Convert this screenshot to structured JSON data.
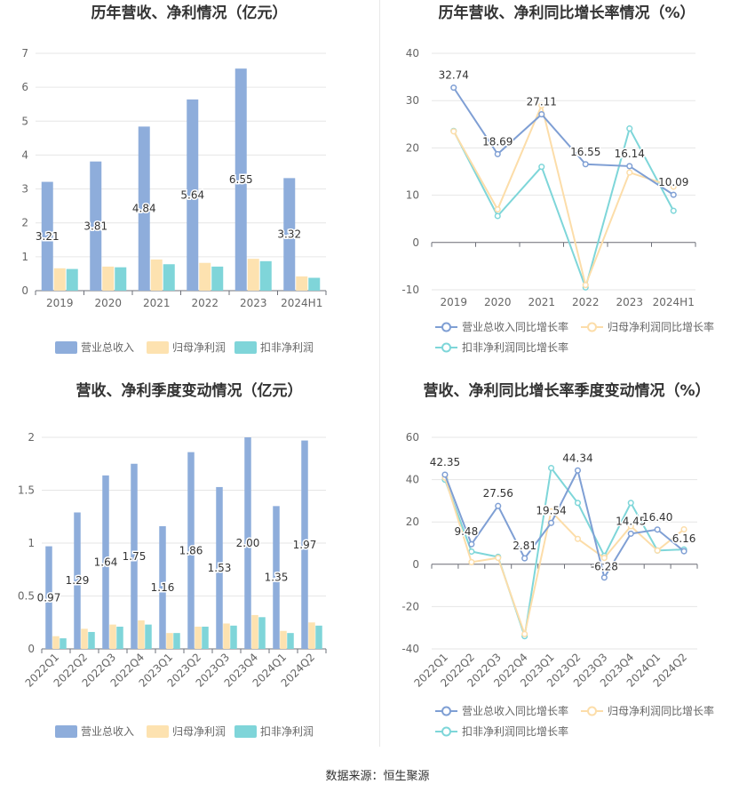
{
  "source": "数据来源：恒生聚源",
  "colors": {
    "revenue": "#8EADDB",
    "net_profit": "#FDE2B0",
    "deducted_profit": "#7FD5D9",
    "revenue_line": "#7F9FD4",
    "net_line": "#FCDDA9",
    "deducted_line": "#7ED6D9",
    "grid": "#E6E6E6",
    "axis_text": "#666666",
    "label_text": "#333333"
  },
  "chart_data": [
    {
      "id": "annual_amount",
      "type": "bar",
      "title": "历年营收、净利情况（亿元）",
      "categories": [
        "2019",
        "2020",
        "2021",
        "2022",
        "2023",
        "2024H1"
      ],
      "ylim": [
        0,
        7
      ],
      "yticks": [
        0,
        1,
        2,
        3,
        4,
        5,
        6,
        7
      ],
      "grid": true,
      "legend_position": "bottom",
      "series": [
        {
          "name": "营业总收入",
          "values": [
            3.21,
            3.81,
            4.84,
            5.64,
            6.55,
            3.32
          ],
          "labels": [
            "3.21",
            "3.81",
            "4.84",
            "5.64",
            "6.55",
            "3.32"
          ]
        },
        {
          "name": "归母净利润",
          "values": [
            0.66,
            0.71,
            0.92,
            0.82,
            0.94,
            0.42
          ]
        },
        {
          "name": "扣非净利润",
          "values": [
            0.64,
            0.69,
            0.78,
            0.71,
            0.87,
            0.38
          ]
        }
      ]
    },
    {
      "id": "annual_growth",
      "type": "line",
      "title": "历年营收、净利同比增长率情况（%）",
      "categories": [
        "2019",
        "2020",
        "2021",
        "2022",
        "2023",
        "2024H1"
      ],
      "ylim": [
        -10,
        40
      ],
      "yticks": [
        -10,
        0,
        10,
        20,
        30,
        40
      ],
      "grid": true,
      "legend_position": "bottom",
      "series": [
        {
          "name": "营业总收入同比增长率",
          "values": [
            32.74,
            18.69,
            27.11,
            16.55,
            16.14,
            10.09
          ],
          "labels": [
            "32.74",
            "18.69",
            "27.11",
            "16.55",
            "16.14",
            "10.09"
          ]
        },
        {
          "name": "归母净利润同比增长率",
          "values": [
            23.5,
            7.0,
            29.0,
            -9.0,
            14.8,
            11.8
          ]
        },
        {
          "name": "扣非净利润同比增长率",
          "values": [
            23.6,
            5.6,
            16.0,
            -9.5,
            24.1,
            6.7
          ]
        }
      ]
    },
    {
      "id": "quarterly_amount",
      "type": "bar",
      "title": "营收、净利季度变动情况（亿元）",
      "categories": [
        "2022Q1",
        "2022Q2",
        "2022Q3",
        "2022Q4",
        "2023Q1",
        "2023Q2",
        "2023Q3",
        "2023Q4",
        "2024Q1",
        "2024Q2"
      ],
      "ylim": [
        0,
        2
      ],
      "yticks": [
        0,
        0.5,
        1,
        1.5,
        2
      ],
      "ytick_labels": [
        "0",
        "0.5",
        "1",
        "1.5",
        "2"
      ],
      "grid": true,
      "legend_position": "bottom",
      "series": [
        {
          "name": "营业总收入",
          "values": [
            0.97,
            1.29,
            1.64,
            1.75,
            1.16,
            1.86,
            1.53,
            2.0,
            1.35,
            1.97
          ],
          "labels": [
            "0.97",
            "1.29",
            "1.64",
            "1.75",
            "1.16",
            "1.86",
            "1.53",
            "2.00",
            "1.35",
            "1.97"
          ]
        },
        {
          "name": "归母净利润",
          "values": [
            0.12,
            0.19,
            0.23,
            0.27,
            0.15,
            0.21,
            0.24,
            0.32,
            0.17,
            0.25
          ]
        },
        {
          "name": "扣非净利润",
          "values": [
            0.1,
            0.16,
            0.21,
            0.23,
            0.15,
            0.21,
            0.22,
            0.3,
            0.15,
            0.22
          ]
        }
      ]
    },
    {
      "id": "quarterly_growth",
      "type": "line",
      "title": "营收、净利同比增长率季度变动情况（%）",
      "categories": [
        "2022Q1",
        "2022Q2",
        "2022Q3",
        "2022Q4",
        "2023Q1",
        "2023Q2",
        "2023Q3",
        "2023Q4",
        "2024Q1",
        "2024Q2"
      ],
      "ylim": [
        -40,
        60
      ],
      "yticks": [
        -40,
        -20,
        0,
        20,
        40,
        60
      ],
      "grid": true,
      "legend_position": "bottom",
      "series": [
        {
          "name": "营业总收入同比增长率",
          "values": [
            42.35,
            9.48,
            27.56,
            2.81,
            19.54,
            44.34,
            -6.28,
            14.45,
            16.4,
            6.16
          ],
          "labels": [
            "42.35",
            "9.48",
            "27.56",
            "2.81",
            "19.54",
            "44.34",
            "-6.28",
            "14.45",
            "16.40",
            "6.16"
          ]
        },
        {
          "name": "归母净利润同比增长率",
          "values": [
            41.0,
            1.0,
            3.0,
            -33.0,
            25.0,
            12.0,
            3.0,
            18.0,
            6.5,
            16.5
          ]
        },
        {
          "name": "扣非净利润同比增长率",
          "values": [
            40.0,
            6.0,
            3.5,
            -34.0,
            45.5,
            29.0,
            4.0,
            29.0,
            6.5,
            7.0
          ]
        }
      ]
    }
  ]
}
